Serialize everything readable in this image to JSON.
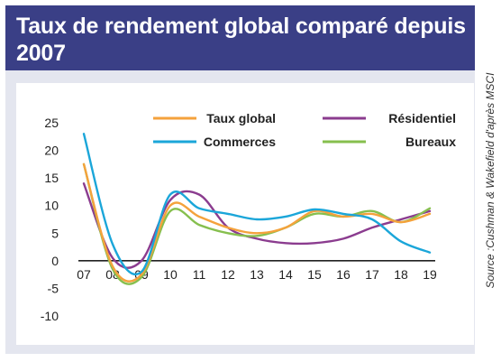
{
  "title": "Taux de rendement global comparé depuis 2007",
  "source": "Source :Cushman & Wakefield d'après MSCI",
  "chart_data": {
    "type": "line",
    "title": "Taux de rendement global comparé depuis 2007",
    "xlabel": "",
    "ylabel": "",
    "categories": [
      "07",
      "08",
      "09",
      "10",
      "11",
      "12",
      "13",
      "14",
      "15",
      "16",
      "17",
      "18",
      "19"
    ],
    "x": [
      2007,
      2008,
      2009,
      2010,
      2011,
      2012,
      2013,
      2014,
      2015,
      2016,
      2017,
      2018,
      2019
    ],
    "ylim": [
      -10,
      25
    ],
    "yticks": [
      25,
      20,
      15,
      10,
      5,
      0,
      -5,
      -10
    ],
    "grid": false,
    "legend_position": "top",
    "series": [
      {
        "name": "Taux global",
        "color": "#f4a23c",
        "values": [
          17.5,
          -1.0,
          -2.5,
          10.0,
          8.0,
          6.0,
          5.0,
          6.0,
          9.0,
          8.0,
          8.5,
          7.0,
          8.5
        ]
      },
      {
        "name": "Commerces",
        "color": "#1ba6d9",
        "values": [
          23.0,
          3.0,
          -2.0,
          12.0,
          9.5,
          8.5,
          7.5,
          8.0,
          9.3,
          8.5,
          7.5,
          3.5,
          1.5
        ]
      },
      {
        "name": "Résidentiel",
        "color": "#8b3c8f",
        "values": [
          14.0,
          0.5,
          0.0,
          11.0,
          12.0,
          6.0,
          4.0,
          3.2,
          3.2,
          4.0,
          6.0,
          7.5,
          9.0
        ]
      },
      {
        "name": "Bureaux",
        "color": "#86bf4e",
        "values": [
          17.5,
          -1.5,
          -3.0,
          9.0,
          6.5,
          5.0,
          4.5,
          6.0,
          8.5,
          8.0,
          9.0,
          7.0,
          9.5
        ]
      }
    ]
  }
}
